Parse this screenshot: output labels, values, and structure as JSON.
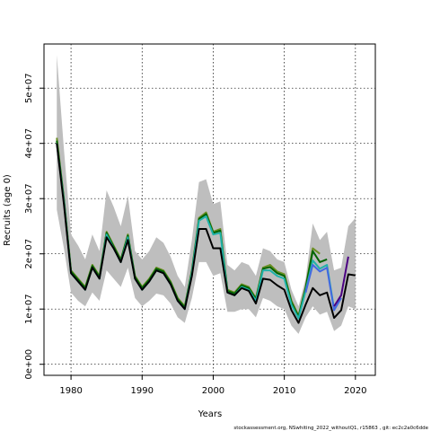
{
  "chart_data": {
    "type": "line",
    "title": "",
    "xlabel": "Years",
    "ylabel": "Recruits (age 0)",
    "xlim": [
      1976.2,
      2022.8
    ],
    "ylim": [
      -2000000,
      58000000
    ],
    "xticks": [
      1980,
      1990,
      2000,
      2010,
      2020
    ],
    "xtick_labels": [
      "1980",
      "1990",
      "2000",
      "2010",
      "2020"
    ],
    "yticks": [
      0,
      10000000,
      20000000,
      30000000,
      40000000,
      50000000
    ],
    "ytick_labels": [
      "0e+00",
      "1e+07",
      "2e+07",
      "3e+07",
      "4e+07",
      "5e+07"
    ],
    "grid": true,
    "footer": "stockassessment.org,  NSwhiting_2022_withoutQ1,  r15863 ,  git: ec2c2a0c6dde",
    "band": {
      "color": "#bebebe",
      "x": [
        1978,
        1979,
        1980,
        1981,
        1982,
        1983,
        1984,
        1985,
        1986,
        1987,
        1988,
        1989,
        1990,
        1991,
        1992,
        1993,
        1994,
        1995,
        1996,
        1997,
        1998,
        1999,
        2000,
        2001,
        2002,
        2003,
        2004,
        2005,
        2006,
        2007,
        2008,
        2009,
        2010,
        2011,
        2012,
        2013,
        2014,
        2015,
        2016,
        2017,
        2018,
        2019,
        2020
      ],
      "upper": [
        56000000,
        39000000,
        23500000,
        21500000,
        19000000,
        23500000,
        20500000,
        31500000,
        28500000,
        25000000,
        30500000,
        20500000,
        19000000,
        20500000,
        23000000,
        22000000,
        19500000,
        16000000,
        14000000,
        22500000,
        33000000,
        33500000,
        29000000,
        29500000,
        18000000,
        17000000,
        18500000,
        18000000,
        16000000,
        21000000,
        20500000,
        19000000,
        18500000,
        13500000,
        10500000,
        15500000,
        25500000,
        22500000,
        24000000,
        17000000,
        17500000,
        25000000,
        26500000
      ],
      "lower": [
        28000000,
        21000000,
        13000000,
        11500000,
        10500000,
        13000000,
        11500000,
        17000000,
        15500000,
        14000000,
        17500000,
        12000000,
        10500000,
        11500000,
        12800000,
        12500000,
        11000000,
        8500000,
        7500000,
        12000000,
        18500000,
        18500000,
        16000000,
        16500000,
        9500000,
        9500000,
        10000000,
        10000000,
        8500000,
        12000000,
        11500000,
        10500000,
        10000000,
        7000000,
        5500000,
        8500000,
        10500000,
        9000000,
        9500000,
        6000000,
        7000000,
        10500000,
        10000000
      ]
    },
    "series": [
      {
        "color": "#6b8e23",
        "x": [
          1978,
          1979,
          1980,
          1981,
          1982,
          1983,
          1984,
          1985,
          1986,
          1987,
          1988,
          1989,
          1990,
          1991,
          1992,
          1993,
          1994,
          1995,
          1996,
          1997,
          1998,
          1999,
          2000,
          2001,
          2002,
          2003,
          2004,
          2005,
          2006,
          2007,
          2008,
          2009,
          2010,
          2011,
          2012,
          2013,
          2014,
          2015
        ],
        "values": [
          41000000,
          30000000,
          17000000,
          15500000,
          14000000,
          18000000,
          16000000,
          24000000,
          21500000,
          19000000,
          23500000,
          16000000,
          14000000,
          15500000,
          17500000,
          17000000,
          15000000,
          12000000,
          10500000,
          17000000,
          26500000,
          27500000,
          24000000,
          24500000,
          13500000,
          13000000,
          14500000,
          14000000,
          12000000,
          17500000,
          18000000,
          16800000,
          16300000,
          11500000,
          8800000,
          14000000,
          21000000,
          20000000
        ]
      },
      {
        "color": "#006400",
        "x": [
          1978,
          1979,
          1980,
          1981,
          1982,
          1983,
          1984,
          1985,
          1986,
          1987,
          1988,
          1989,
          1990,
          1991,
          1992,
          1993,
          1994,
          1995,
          1996,
          1997,
          1998,
          1999,
          2000,
          2001,
          2002,
          2003,
          2004,
          2005,
          2006,
          2007,
          2008,
          2009,
          2010,
          2011,
          2012,
          2013,
          2014,
          2015,
          2016
        ],
        "values": [
          40500000,
          29800000,
          16800000,
          15300000,
          13800000,
          17800000,
          15800000,
          23800000,
          21300000,
          18800000,
          23300000,
          15800000,
          13800000,
          15300000,
          17300000,
          16800000,
          14800000,
          11800000,
          10300000,
          16800000,
          26300000,
          27200000,
          23800000,
          24200000,
          13300000,
          12800000,
          14300000,
          13800000,
          11800000,
          17300000,
          17600000,
          16500000,
          16000000,
          11200000,
          8600000,
          13800000,
          20500000,
          18500000,
          19000000
        ]
      },
      {
        "color": "#20b2aa",
        "x": [
          1978,
          1979,
          1980,
          1981,
          1982,
          1983,
          1984,
          1985,
          1986,
          1987,
          1988,
          1989,
          1990,
          1991,
          1992,
          1993,
          1994,
          1995,
          1996,
          1997,
          1998,
          1999,
          2000,
          2001,
          2002,
          2003,
          2004,
          2005,
          2006,
          2007,
          2008,
          2009,
          2010,
          2011,
          2012,
          2013,
          2014,
          2015,
          2016,
          2017
        ],
        "values": [
          40000000,
          29500000,
          16500000,
          15000000,
          13500000,
          17500000,
          15500000,
          23500000,
          21000000,
          18500000,
          23000000,
          15500000,
          13500000,
          15000000,
          17000000,
          16500000,
          14500000,
          11500000,
          10000000,
          16500000,
          26000000,
          26800000,
          23500000,
          23800000,
          13000000,
          12500000,
          14000000,
          13500000,
          11500000,
          17000000,
          17000000,
          16000000,
          15500000,
          10800000,
          8300000,
          13300000,
          18800000,
          17300000,
          18000000,
          10000000
        ]
      },
      {
        "color": "#4169e1",
        "x": [
          2013,
          2014,
          2015,
          2016,
          2017,
          2018
        ],
        "values": [
          13000000,
          18000000,
          16800000,
          17500000,
          9800000,
          12000000
        ]
      },
      {
        "color": "#4b0082",
        "x": [
          2017,
          2018,
          2019
        ],
        "values": [
          10500000,
          12500000,
          19500000
        ]
      },
      {
        "color": "#000000",
        "x": [
          1978,
          1979,
          1980,
          1981,
          1982,
          1983,
          1984,
          1985,
          1986,
          1987,
          1988,
          1989,
          1990,
          1991,
          1992,
          1993,
          1994,
          1995,
          1996,
          1997,
          1998,
          1999,
          2000,
          2001,
          2002,
          2003,
          2004,
          2005,
          2006,
          2007,
          2008,
          2009,
          2010,
          2011,
          2012,
          2013,
          2014,
          2015,
          2016,
          2017,
          2018,
          2019,
          2020
        ],
        "values": [
          40000000,
          29000000,
          16500000,
          15000000,
          13500000,
          17500000,
          15500000,
          23000000,
          21000000,
          18500000,
          22500000,
          15500000,
          13500000,
          15000000,
          17000000,
          16500000,
          14500000,
          11500000,
          10000000,
          16000000,
          24500000,
          24500000,
          21000000,
          21000000,
          13000000,
          12500000,
          13800000,
          13300000,
          11000000,
          15500000,
          15300000,
          14300000,
          13500000,
          9800000,
          7500000,
          10800000,
          13800000,
          12500000,
          13000000,
          8400000,
          9800000,
          16300000,
          16100000
        ]
      }
    ]
  }
}
